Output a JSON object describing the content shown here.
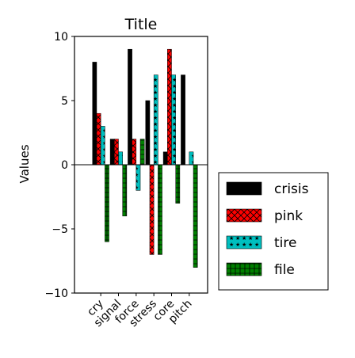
{
  "chart_data": {
    "type": "bar",
    "title": "Title",
    "xlabel": "",
    "ylabel": "Values",
    "ylim": [
      -10,
      10
    ],
    "yticks": [
      -10,
      -5,
      0,
      5,
      10
    ],
    "ytick_labels": [
      "−10",
      "−5",
      "0",
      "5",
      "10"
    ],
    "grid": false,
    "legend_position": "right",
    "categories": [
      "cry",
      "signal",
      "force",
      "stress",
      "core",
      "pitch"
    ],
    "series": [
      {
        "name": "crisis",
        "color": "#000000",
        "hatch": "none",
        "values": [
          8,
          2,
          9,
          5,
          1,
          7
        ]
      },
      {
        "name": "pink",
        "color": "#ff0000",
        "hatch": "cross",
        "values": [
          4,
          2,
          2,
          -7,
          9,
          0
        ]
      },
      {
        "name": "tire",
        "color": "#00bfbf",
        "hatch": "star",
        "values": [
          3,
          1,
          -2,
          7,
          7,
          1
        ]
      },
      {
        "name": "file",
        "color": "#008000",
        "hatch": "plus",
        "values": [
          -6,
          -4,
          2,
          -7,
          -3,
          -8
        ]
      }
    ]
  }
}
